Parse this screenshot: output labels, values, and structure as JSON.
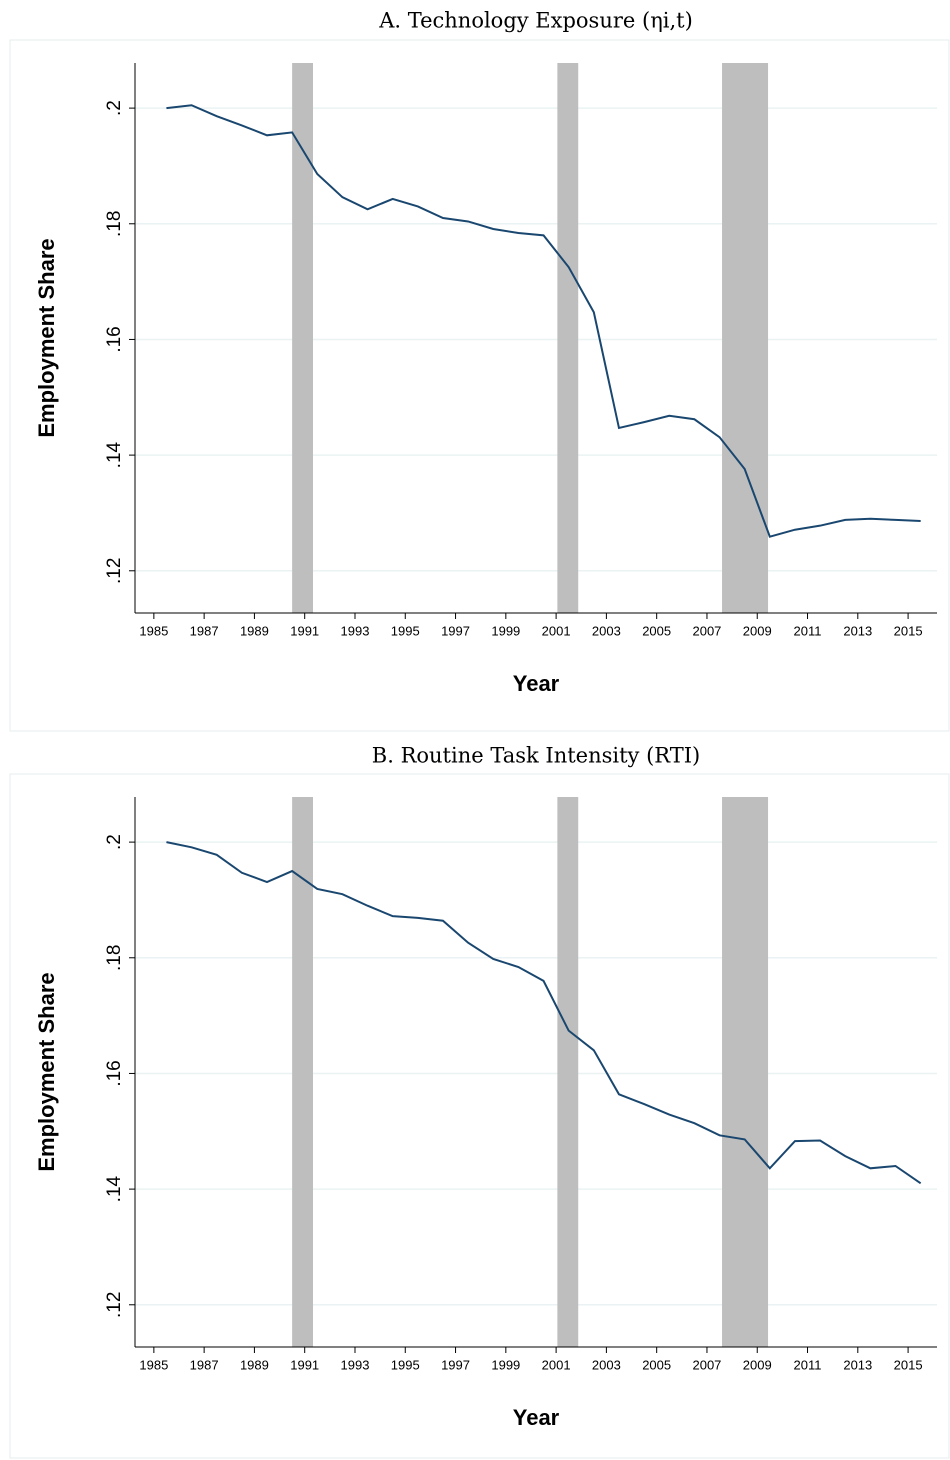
{
  "chart_data": [
    {
      "type": "line",
      "title": "A. Technology Exposure (ηi,t)",
      "x_label": "Year",
      "y_label": "Employment Share",
      "x": [
        1985.5,
        1986.5,
        1987.5,
        1988.5,
        1989.5,
        1990.5,
        1991.5,
        1992.5,
        1993.5,
        1994.5,
        1995.5,
        1996.5,
        1997.5,
        1998.5,
        1999.5,
        2000.5,
        2001.5,
        2002.5,
        2003.5,
        2004.5,
        2005.5,
        2006.5,
        2007.5,
        2008.5,
        2009.5,
        2010.5,
        2011.5,
        2012.5,
        2013.5,
        2014.5,
        2015.5
      ],
      "series": [
        {
          "color": "#1a476f",
          "values": [
            0.2,
            0.2005,
            0.1986,
            0.197,
            0.1953,
            0.1958,
            0.1886,
            0.1846,
            0.1825,
            0.1843,
            0.183,
            0.181,
            0.1804,
            0.1791,
            0.1784,
            0.178,
            0.1725,
            0.1647,
            0.1447,
            0.1457,
            0.1468,
            0.1462,
            0.1431,
            0.1376,
            0.1259,
            0.1271,
            0.1278,
            0.1288,
            0.129,
            0.1288,
            0.1286
          ]
        }
      ],
      "shaded_periods": [
        [
          1990.5,
          1991.33
        ],
        [
          2001.05,
          2001.88
        ],
        [
          2007.6,
          2009.43
        ]
      ],
      "shade_color": "#bebebe",
      "xlim": [
        1984.25,
        2016.15
      ],
      "xticks": [
        1985,
        1987,
        1989,
        1991,
        1993,
        1995,
        1997,
        1999,
        2001,
        2003,
        2005,
        2007,
        2009,
        2011,
        2013,
        2015
      ],
      "ylim": [
        0.1127,
        0.2078
      ],
      "yticks": [
        {
          "value": 0.12,
          "label": ".12"
        },
        {
          "value": 0.14,
          "label": ".14"
        },
        {
          "value": 0.16,
          "label": ".16"
        },
        {
          "value": 0.18,
          "label": ".18"
        },
        {
          "value": 0.2,
          "label": ".2"
        }
      ],
      "grid": true
    },
    {
      "type": "line",
      "title": "B. Routine Task Intensity (RTI)",
      "x_label": "Year",
      "y_label": "Employment Share",
      "x": [
        1985.5,
        1986.5,
        1987.5,
        1988.5,
        1989.5,
        1990.5,
        1991.5,
        1992.5,
        1993.5,
        1994.5,
        1995.5,
        1996.5,
        1997.5,
        1998.5,
        1999.5,
        2000.5,
        2001.5,
        2002.5,
        2003.5,
        2004.5,
        2005.5,
        2006.5,
        2007.5,
        2008.5,
        2009.5,
        2010.5,
        2011.5,
        2012.5,
        2013.5,
        2014.5,
        2015.5
      ],
      "series": [
        {
          "color": "#1a476f",
          "values": [
            0.2,
            0.1991,
            0.1978,
            0.1947,
            0.1931,
            0.195,
            0.1919,
            0.191,
            0.189,
            0.1872,
            0.1869,
            0.1864,
            0.1826,
            0.1798,
            0.1784,
            0.176,
            0.1674,
            0.164,
            0.1564,
            0.1547,
            0.1529,
            0.1514,
            0.1493,
            0.1486,
            0.1436,
            0.1483,
            0.1484,
            0.1457,
            0.1436,
            0.144,
            0.141
          ]
        }
      ],
      "shaded_periods": [
        [
          1990.5,
          1991.33
        ],
        [
          2001.05,
          2001.88
        ],
        [
          2007.6,
          2009.43
        ]
      ],
      "shade_color": "#bebebe",
      "xlim": [
        1984.25,
        2016.15
      ],
      "xticks": [
        1985,
        1987,
        1989,
        1991,
        1993,
        1995,
        1997,
        1999,
        2001,
        2003,
        2005,
        2007,
        2009,
        2011,
        2013,
        2015
      ],
      "ylim": [
        0.1127,
        0.2078
      ],
      "yticks": [
        {
          "value": 0.12,
          "label": ".12"
        },
        {
          "value": 0.14,
          "label": ".14"
        },
        {
          "value": 0.16,
          "label": ".16"
        },
        {
          "value": 0.18,
          "label": ".18"
        },
        {
          "value": 0.2,
          "label": ".2"
        }
      ],
      "grid": true
    }
  ]
}
